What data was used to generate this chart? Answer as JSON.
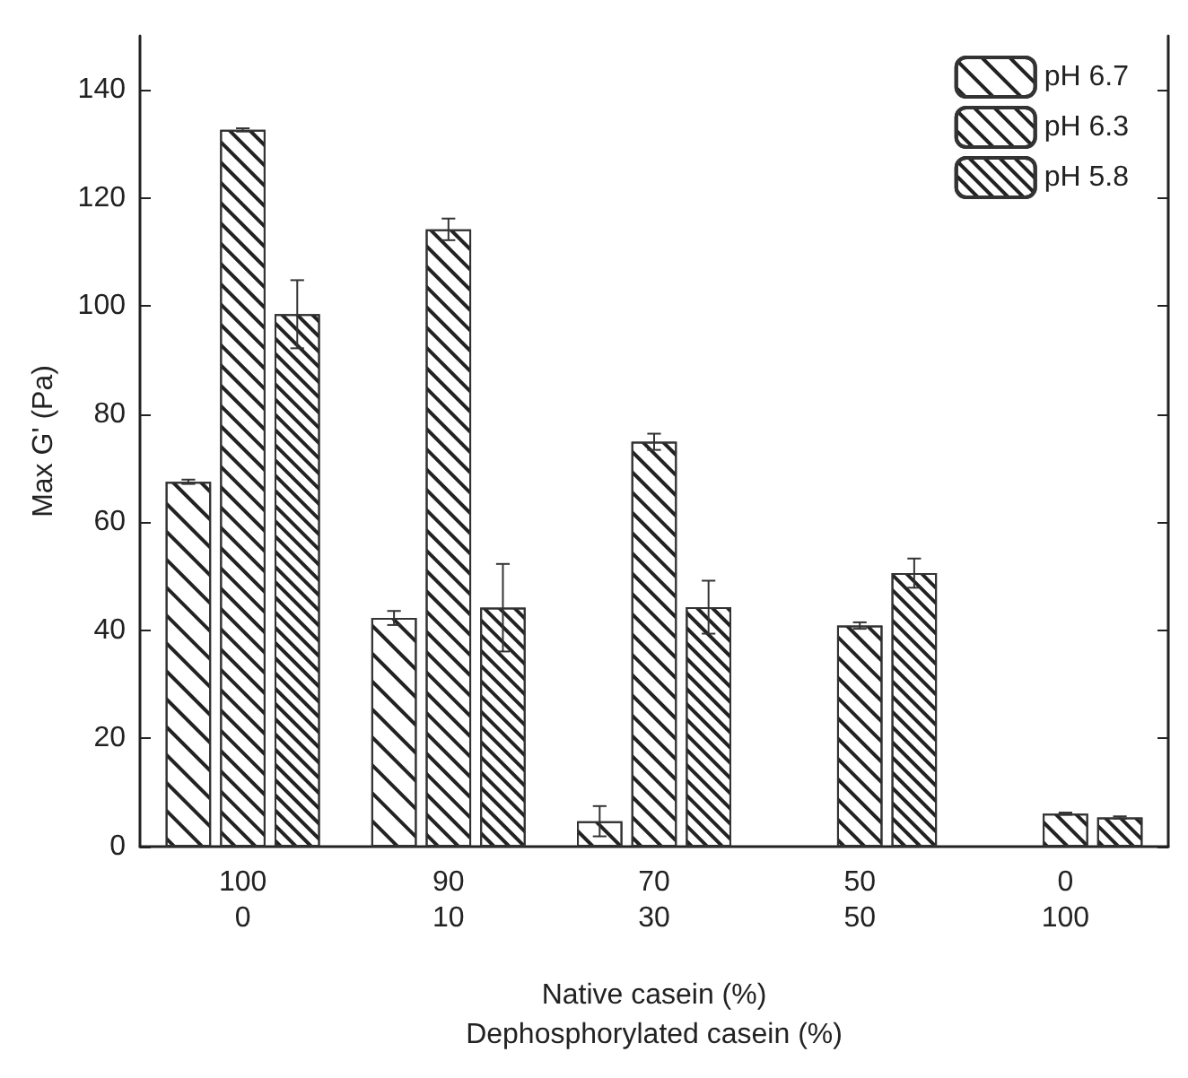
{
  "chart_data": {
    "type": "bar",
    "ylabel": "Max G' (Pa)",
    "xlabel": "Native casein (%)\nDephosphorylated casein (%)",
    "categories": [
      "100\n0",
      "90\n10",
      "70\n30",
      "50\n50",
      "0\n100"
    ],
    "series": [
      {
        "name": "pH 6.7",
        "color": "#ffffff",
        "values": [
          67.5,
          42.3,
          4.7,
          null,
          null
        ],
        "errors": [
          0.4,
          1.3,
          2.8,
          null,
          null
        ]
      },
      {
        "name": "pH 6.3",
        "color": "#ffffff",
        "values": [
          132.6,
          114.2,
          74.9,
          40.9,
          6.1
        ],
        "errors": [
          0.3,
          2.0,
          1.5,
          0.6,
          0.2
        ]
      },
      {
        "name": "pH 5.8",
        "color": "#ffffff",
        "values": [
          98.5,
          44.2,
          44.3,
          50.6,
          5.4
        ],
        "errors": [
          6.3,
          8.1,
          4.9,
          2.7,
          0.2
        ]
      }
    ],
    "ylim": [
      0,
      150
    ],
    "yticks": [
      0,
      20,
      40,
      60,
      80,
      100,
      120,
      140
    ],
    "grid": false,
    "legend": "top right"
  }
}
